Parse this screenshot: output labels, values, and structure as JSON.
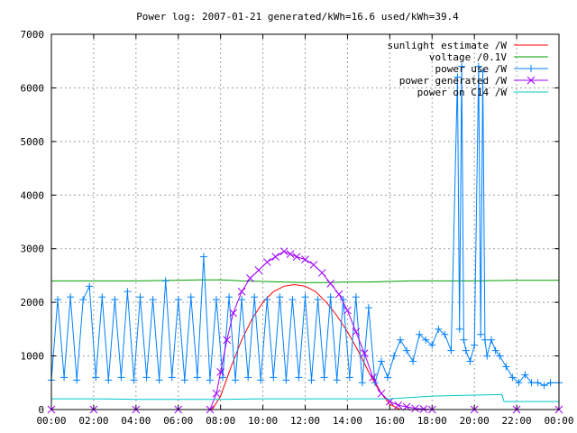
{
  "chart_data": {
    "type": "line",
    "title": "Power log: 2007-01-21 generated/kWh=16.6 used/kWh=39.4",
    "xlabel": "",
    "ylabel": "",
    "x_ticks": [
      "00:00",
      "02:00",
      "04:00",
      "06:00",
      "08:00",
      "10:00",
      "12:00",
      "14:00",
      "16:00",
      "18:00",
      "20:00",
      "22:00",
      "00:00"
    ],
    "y_ticks": [
      "0",
      "1000",
      "2000",
      "3000",
      "4000",
      "5000",
      "6000",
      "7000"
    ],
    "xlim_hours": [
      0,
      24
    ],
    "ylim": [
      0,
      7000
    ],
    "grid": true,
    "legend_position": "top-right",
    "series": [
      {
        "name": "sunlight estimate /W",
        "color": "#ff0000",
        "style": "line",
        "x": [
          7.6,
          8.0,
          8.5,
          9.0,
          9.5,
          10.0,
          10.5,
          11.0,
          11.5,
          12.0,
          12.5,
          13.0,
          13.5,
          14.0,
          14.5,
          15.0,
          15.5,
          16.0,
          16.5
        ],
        "y": [
          0,
          250,
          800,
          1300,
          1700,
          2000,
          2200,
          2300,
          2330,
          2300,
          2200,
          2000,
          1750,
          1450,
          1100,
          700,
          350,
          100,
          0
        ]
      },
      {
        "name": "voltage /0.1V",
        "color": "#00a000",
        "style": "line",
        "x": [
          0,
          2,
          4,
          6,
          7,
          8,
          9,
          10,
          11,
          12,
          13,
          14,
          15,
          16,
          17,
          18,
          20,
          22,
          24
        ],
        "y": [
          2400,
          2400,
          2400,
          2410,
          2420,
          2420,
          2400,
          2390,
          2380,
          2370,
          2370,
          2380,
          2380,
          2390,
          2400,
          2400,
          2400,
          2410,
          2410
        ]
      },
      {
        "name": "power use /W",
        "color": "#0080ff",
        "style": "lines+plus",
        "x": [
          0,
          0.3,
          0.6,
          0.9,
          1.2,
          1.5,
          1.8,
          2.1,
          2.4,
          2.7,
          3.0,
          3.3,
          3.6,
          3.9,
          4.2,
          4.5,
          4.8,
          5.1,
          5.4,
          5.7,
          6.0,
          6.3,
          6.6,
          6.9,
          7.2,
          7.5,
          7.8,
          8.1,
          8.4,
          8.7,
          9.0,
          9.3,
          9.6,
          9.9,
          10.2,
          10.5,
          10.8,
          11.1,
          11.4,
          11.7,
          12.0,
          12.3,
          12.6,
          12.9,
          13.2,
          13.5,
          13.8,
          14.1,
          14.4,
          14.7,
          15.0,
          15.3,
          15.6,
          15.9,
          16.2,
          16.5,
          16.8,
          17.1,
          17.4,
          17.7,
          18.0,
          18.3,
          18.6,
          18.9,
          19.2,
          19.3,
          19.4,
          19.5,
          19.6,
          19.8,
          20.0,
          20.2,
          20.3,
          20.4,
          20.5,
          20.6,
          20.8,
          21.0,
          21.2,
          21.5,
          21.8,
          22.1,
          22.4,
          22.7,
          23.0,
          23.3,
          23.6,
          24.0
        ],
        "y": [
          550,
          2050,
          600,
          2100,
          550,
          2050,
          2300,
          600,
          2100,
          550,
          2050,
          600,
          2200,
          550,
          2100,
          600,
          2050,
          550,
          2400,
          600,
          2050,
          550,
          2100,
          600,
          2850,
          550,
          2050,
          600,
          2100,
          550,
          2050,
          600,
          2100,
          550,
          2050,
          600,
          2100,
          550,
          2050,
          600,
          2100,
          550,
          2050,
          600,
          2100,
          550,
          2050,
          600,
          2100,
          500,
          1900,
          500,
          900,
          600,
          1000,
          1300,
          1100,
          900,
          1400,
          1300,
          1200,
          1500,
          1400,
          1100,
          6200,
          1500,
          6400,
          1300,
          1100,
          900,
          1200,
          6400,
          1400,
          6300,
          1300,
          1000,
          1300,
          1100,
          1000,
          800,
          600,
          500,
          650,
          500,
          500,
          450,
          500,
          500
        ]
      },
      {
        "name": "power generated /W",
        "color": "#a000ff",
        "style": "lines+cross",
        "x": [
          0,
          2,
          4,
          6,
          7.5,
          7.8,
          8.0,
          8.3,
          8.6,
          9.0,
          9.4,
          9.8,
          10.2,
          10.6,
          11.0,
          11.3,
          11.6,
          12.0,
          12.4,
          12.8,
          13.2,
          13.6,
          14.0,
          14.4,
          14.8,
          15.2,
          15.6,
          16.0,
          16.4,
          16.8,
          17.2,
          17.6,
          18.0,
          20,
          22,
          24
        ],
        "y": [
          0,
          0,
          0,
          0,
          0,
          300,
          700,
          1300,
          1800,
          2200,
          2450,
          2600,
          2750,
          2850,
          2950,
          2900,
          2850,
          2800,
          2700,
          2550,
          2350,
          2150,
          1850,
          1450,
          1050,
          600,
          300,
          150,
          80,
          50,
          20,
          10,
          0,
          0,
          0,
          0
        ]
      },
      {
        "name": "power on C14 /W",
        "color": "#00c8c8",
        "style": "line",
        "x": [
          0,
          2,
          4,
          6,
          8,
          10,
          12,
          14,
          16,
          18,
          20,
          21.3,
          21.4,
          22,
          24
        ],
        "y": [
          200,
          200,
          190,
          190,
          190,
          200,
          200,
          200,
          200,
          250,
          270,
          280,
          150,
          150,
          150
        ]
      }
    ]
  }
}
